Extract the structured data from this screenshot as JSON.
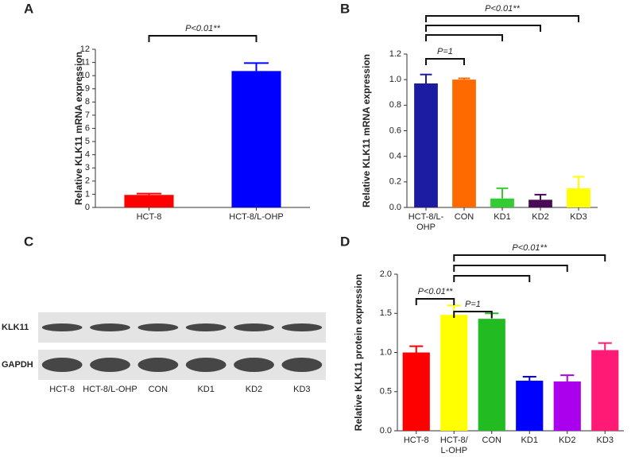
{
  "chart_data": [
    {
      "type": "bar",
      "label": "A",
      "ylabel": "Relative KLK11 mRNA expression",
      "categories": [
        "HCT-8",
        "HCT-8/L-OHP"
      ],
      "values": [
        0.95,
        10.35
      ],
      "errors": [
        0.1,
        0.6
      ],
      "colors": [
        "#ff0000",
        "#0000ff"
      ],
      "ylim": [
        0,
        12
      ],
      "yticks": [
        0,
        1,
        2,
        3,
        4,
        5,
        6,
        7,
        8,
        9,
        10,
        11,
        12
      ],
      "annotations": [
        {
          "text": "P<0.01**",
          "from": "HCT-8",
          "to": [
            "HCT-8/L-OHP"
          ]
        }
      ]
    },
    {
      "type": "bar",
      "label": "B",
      "ylabel": "Relative KLK11 mRNA expression",
      "categories": [
        "HCT-8/L-OHP",
        "CON",
        "KD1",
        "KD2",
        "KD3"
      ],
      "values": [
        0.97,
        1.0,
        0.07,
        0.06,
        0.15
      ],
      "errors": [
        0.07,
        0.01,
        0.08,
        0.04,
        0.09
      ],
      "colors": [
        "#1c1ca3",
        "#ff6a00",
        "#33cc33",
        "#4a0a55",
        "#ffff00"
      ],
      "ylim": [
        0,
        1.2
      ],
      "yticks": [
        {
          "value": 0,
          "label": "0.0"
        },
        {
          "value": 0.2,
          "label": "0.2"
        },
        {
          "value": 0.4,
          "label": "0.4"
        },
        {
          "value": 0.6,
          "label": "0.6"
        },
        {
          "value": 0.8,
          "label": "0.8"
        },
        {
          "value": 1,
          "label": "1.0"
        },
        {
          "value": 1.2,
          "label": "1.2"
        }
      ],
      "annotations": [
        {
          "text": "P=1",
          "from": "HCT-8/L-OHP",
          "to": [
            "CON"
          ]
        },
        {
          "text": "P<0.01**",
          "from": "HCT-8/L-OHP",
          "to": [
            "KD1",
            "KD2",
            "KD3"
          ]
        }
      ]
    },
    {
      "type": "blot",
      "label": "C",
      "rows": [
        "KLK11",
        "GAPDH"
      ],
      "lanes": [
        "HCT-8",
        "HCT-8/L-OHP",
        "CON",
        "KD1",
        "KD2",
        "KD3"
      ]
    },
    {
      "type": "bar",
      "label": "D",
      "ylabel": "Relative KLK11 protein expression",
      "categories": [
        "HCT-8",
        "HCT-8/\nL-OHP",
        "CON",
        "KD1",
        "KD2",
        "KD3"
      ],
      "values": [
        1.0,
        1.48,
        1.43,
        0.64,
        0.63,
        1.03
      ],
      "errors": [
        0.08,
        0.12,
        0.07,
        0.05,
        0.08,
        0.09
      ],
      "colors": [
        "#ff0000",
        "#ffff00",
        "#22bb22",
        "#0000ff",
        "#aa00ee",
        "#ff1a75"
      ],
      "ylim": [
        0,
        2
      ],
      "yticks": [
        {
          "value": 0,
          "label": "0.0"
        },
        {
          "value": 0.5,
          "label": "0.5"
        },
        {
          "value": 1,
          "label": "1.0"
        },
        {
          "value": 1.5,
          "label": "1.5"
        },
        {
          "value": 2,
          "label": "2.0"
        }
      ],
      "annotations": [
        {
          "text": "P<0.01**",
          "from": "HCT-8",
          "to": [
            "HCT-8/\nL-OHP"
          ]
        },
        {
          "text": "P=1",
          "from": "HCT-8/\nL-OHP",
          "to": [
            "CON"
          ]
        },
        {
          "text": "P<0.01**",
          "from": "HCT-8/\nL-OHP",
          "to": [
            "KD1",
            "KD2",
            "KD3"
          ]
        }
      ]
    }
  ]
}
